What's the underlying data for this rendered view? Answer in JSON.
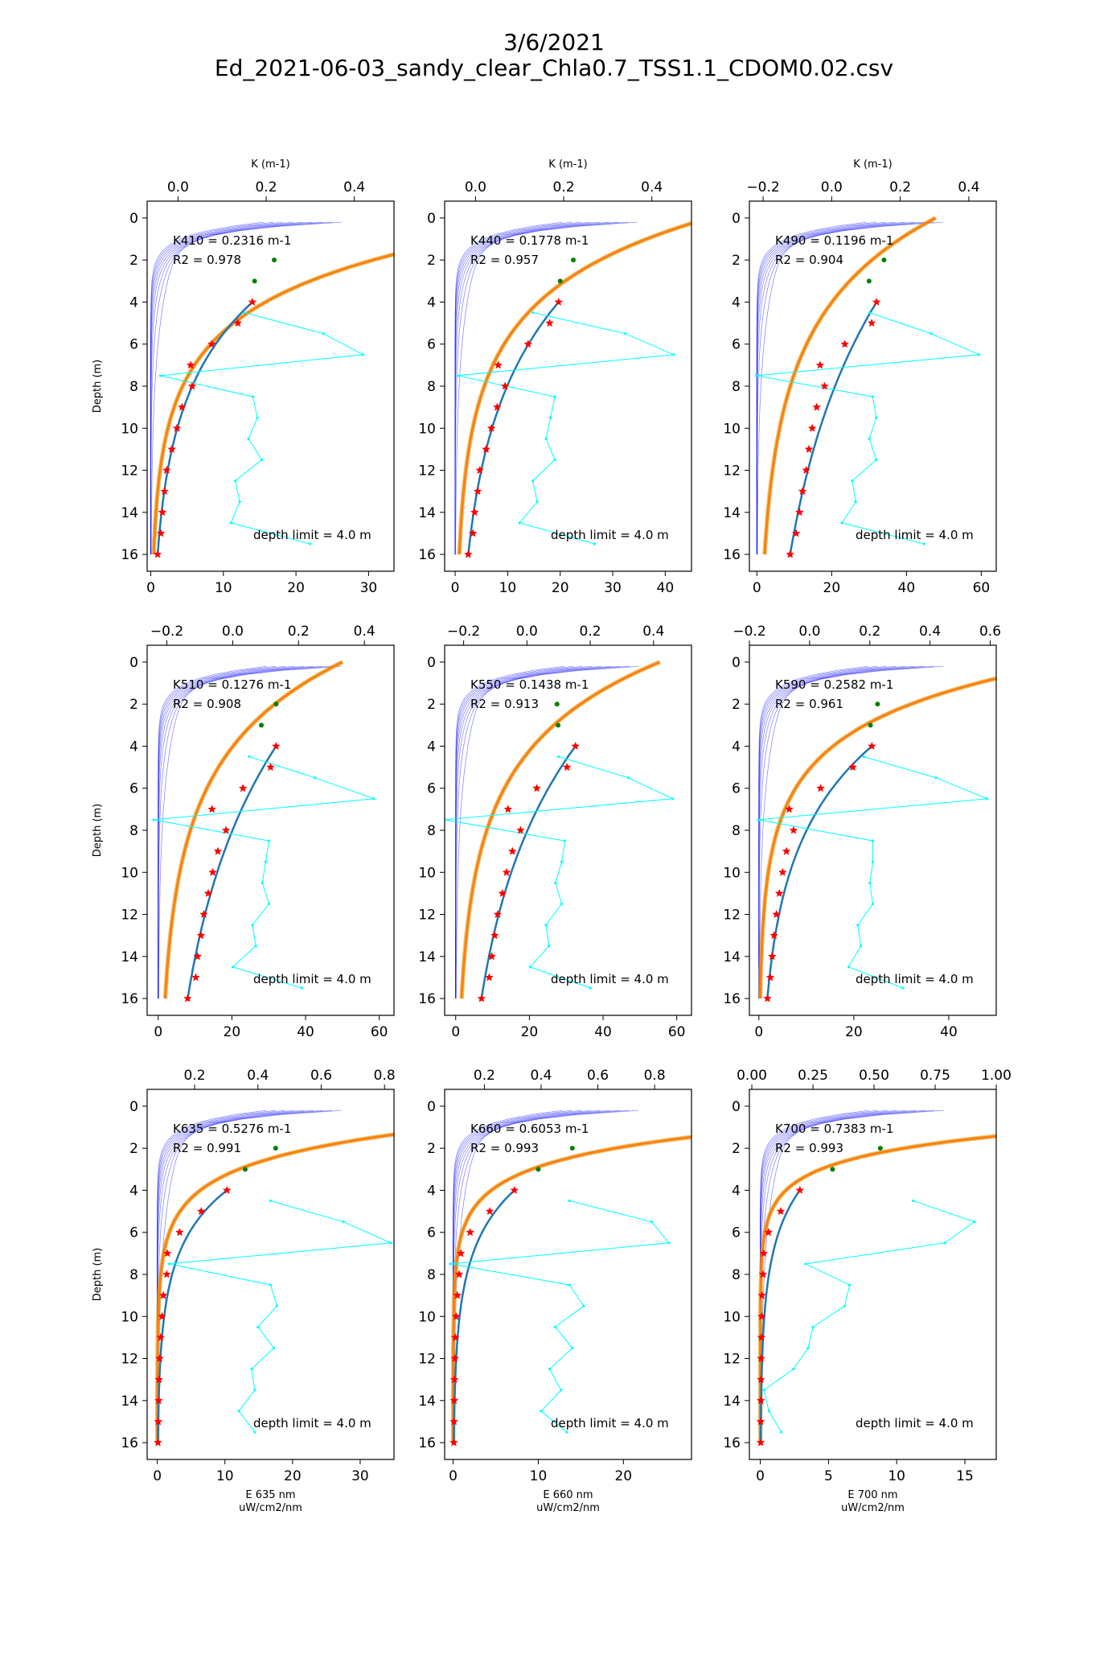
{
  "figure": {
    "title_line1": "3/6/2021",
    "title_line2": "Ed_2021-06-03_sandy_clear_Chla0.7_TSS1.1_CDOM0.02.csv",
    "colors": {
      "frame": "#000000",
      "fit": "#1f77b4",
      "model": "#ff7f0e",
      "model_edge": "#d4a017",
      "K_profile": "#00ffff",
      "thin_curves": "#0000ff",
      "stars": "#ff0000",
      "extra_points": "#008000"
    }
  },
  "chart_data": [
    {
      "type": "scatter",
      "wavelength": "410",
      "k_label": "K410 = 0.2316 m-1",
      "r2_label": "R2 = 0.978",
      "depth_limit_label": "depth limit  = 4.0 m",
      "ylabel": "Depth (m)",
      "top_xlabel": "K (m-1)",
      "xlabel": "",
      "xlabel_units": "",
      "ylim": [
        16.8,
        -0.8
      ],
      "yticks": [
        0,
        2,
        4,
        6,
        8,
        10,
        12,
        14,
        16
      ],
      "xlim": [
        -0.5,
        33.5
      ],
      "xticks": [
        0,
        10,
        20,
        30
      ],
      "k_xlim": [
        -0.07,
        0.49
      ],
      "k_xticks": [
        0.0,
        0.2,
        0.4
      ],
      "k_tick_labels": [
        "0.0",
        "0.2",
        "0.4"
      ],
      "E_max": 33.8,
      "E0": 60.18,
      "model_offset": 0.0,
      "thin_curve_count": 9,
      "measured_stars": {
        "depths": [
          4,
          5,
          6,
          7,
          8,
          9,
          10,
          11,
          12,
          13,
          14,
          15,
          16
        ],
        "values": [
          14.0,
          12.0,
          8.4,
          5.5,
          5.7,
          4.3,
          3.6,
          2.9,
          2.2,
          1.9,
          1.6,
          1.4,
          0.95
        ]
      },
      "extra_points": {
        "depths": [
          2,
          3
        ],
        "values": [
          17.0,
          14.3
        ]
      },
      "K_profile": {
        "depths": [
          4.5,
          5.5,
          6.5,
          7.5,
          8.5,
          9.5,
          10.5,
          11.5,
          12.5,
          13.5,
          14.5,
          15.5
        ],
        "values": [
          0.15,
          0.33,
          0.42,
          -0.04,
          0.17,
          0.18,
          0.16,
          0.19,
          0.13,
          0.14,
          0.12,
          0.3
        ]
      }
    },
    {
      "type": "scatter",
      "wavelength": "440",
      "k_label": "K440 = 0.1778 m-1",
      "r2_label": "R2 = 0.957",
      "depth_limit_label": "depth limit  = 4.0 m",
      "ylabel": "",
      "top_xlabel": "K (m-1)",
      "xlabel": "",
      "xlabel_units": "",
      "ylim": [
        16.8,
        -0.8
      ],
      "yticks": [
        0,
        2,
        4,
        6,
        8,
        10,
        12,
        14,
        16
      ],
      "xlim": [
        -2,
        45
      ],
      "xticks": [
        0,
        10,
        20,
        30,
        40
      ],
      "k_xlim": [
        -0.07,
        0.49
      ],
      "k_xticks": [
        0.0,
        0.2,
        0.4
      ],
      "k_tick_labels": [
        "0.0",
        "0.2",
        "0.4"
      ],
      "E_max": 44.5,
      "E0": 48.4,
      "model_offset": 0.0,
      "thin_curve_count": 9,
      "measured_stars": {
        "depths": [
          4,
          5,
          6,
          7,
          8,
          9,
          10,
          11,
          12,
          13,
          14,
          15,
          16
        ],
        "values": [
          19.7,
          18.0,
          13.9,
          8.2,
          9.5,
          8.0,
          6.9,
          5.9,
          4.7,
          4.3,
          3.7,
          3.4,
          2.5
        ]
      },
      "extra_points": {
        "depths": [
          2,
          3
        ],
        "values": [
          22.5,
          20.0
        ]
      },
      "K_profile": {
        "depths": [
          4.5,
          5.5,
          6.5,
          7.5,
          8.5,
          9.5,
          10.5,
          11.5,
          12.5,
          13.5,
          14.5,
          15.5
        ],
        "values": [
          0.13,
          0.34,
          0.45,
          -0.04,
          0.18,
          0.17,
          0.16,
          0.18,
          0.13,
          0.14,
          0.1,
          0.27
        ]
      }
    },
    {
      "type": "scatter",
      "wavelength": "490",
      "k_label": "K490 = 0.1196 m-1",
      "r2_label": "R2 = 0.904",
      "depth_limit_label": "depth limit  = 4.0 m",
      "ylabel": "",
      "top_xlabel": "K (m-1)",
      "xlabel": "",
      "xlabel_units": "",
      "ylim": [
        16.8,
        -0.8
      ],
      "yticks": [
        0,
        2,
        4,
        6,
        8,
        10,
        12,
        14,
        16
      ],
      "xlim": [
        -2,
        64
      ],
      "xticks": [
        0,
        20,
        40,
        60
      ],
      "k_xlim": [
        -0.24,
        0.48
      ],
      "k_xticks": [
        -0.2,
        0.0,
        0.2,
        0.4
      ],
      "k_tick_labels": [
        "−0.2",
        "0.0",
        "0.2",
        "0.4"
      ],
      "E_max": 64.0,
      "E0": 47.8,
      "model_offset": 0.0,
      "thin_curve_count": 9,
      "measured_stars": {
        "depths": [
          4,
          5,
          6,
          7,
          8,
          9,
          10,
          11,
          12,
          13,
          14,
          15,
          16
        ],
        "values": [
          32.0,
          30.7,
          23.5,
          16.9,
          18.1,
          16.0,
          14.8,
          13.9,
          13.2,
          12.2,
          11.4,
          10.5,
          8.9
        ]
      },
      "extra_points": {
        "depths": [
          2,
          3
        ],
        "values": [
          34.0,
          30.0
        ]
      },
      "K_profile": {
        "depths": [
          4.5,
          5.5,
          6.5,
          7.5,
          8.5,
          9.5,
          10.5,
          11.5,
          12.5,
          13.5,
          14.5,
          15.5
        ],
        "values": [
          0.11,
          0.29,
          0.43,
          -0.22,
          0.12,
          0.13,
          0.11,
          0.13,
          0.06,
          0.07,
          0.03,
          0.27
        ]
      }
    },
    {
      "type": "scatter",
      "wavelength": "510",
      "k_label": "K510 = 0.1276 m-1",
      "r2_label": "R2 = 0.908",
      "depth_limit_label": "depth limit  = 4.0 m",
      "ylabel": "Depth (m)",
      "top_xlabel": "",
      "xlabel": "",
      "xlabel_units": "",
      "ylim": [
        16.8,
        -0.8
      ],
      "yticks": [
        0,
        2,
        4,
        6,
        8,
        10,
        12,
        14,
        16
      ],
      "xlim": [
        -3,
        64
      ],
      "xticks": [
        0,
        20,
        40,
        60
      ],
      "k_xlim": [
        -0.26,
        0.49
      ],
      "k_xticks": [
        -0.2,
        0.0,
        0.2,
        0.4
      ],
      "k_tick_labels": [
        "−0.2",
        "0.0",
        "0.2",
        "0.4"
      ],
      "E_max": 64.0,
      "E0": 50.0,
      "model_offset": 0.0,
      "thin_curve_count": 9,
      "measured_stars": {
        "depths": [
          4,
          5,
          6,
          7,
          8,
          9,
          10,
          11,
          12,
          13,
          14,
          15,
          16
        ],
        "values": [
          32.0,
          30.5,
          23.0,
          14.6,
          18.4,
          16.2,
          14.8,
          13.6,
          12.4,
          11.6,
          10.7,
          10.2,
          8.0
        ]
      },
      "extra_points": {
        "depths": [
          2,
          3
        ],
        "values": [
          32.0,
          28.0
        ]
      },
      "K_profile": {
        "depths": [
          4.5,
          5.5,
          6.5,
          7.5,
          8.5,
          9.5,
          10.5,
          11.5,
          12.5,
          13.5,
          14.5,
          15.5
        ],
        "values": [
          0.05,
          0.25,
          0.43,
          -0.24,
          0.11,
          0.1,
          0.09,
          0.11,
          0.06,
          0.07,
          0.0,
          0.21
        ]
      }
    },
    {
      "type": "scatter",
      "wavelength": "550",
      "k_label": "K550 = 0.1438 m-1",
      "r2_label": "R2 = 0.913",
      "depth_limit_label": "depth limit  = 4.0 m",
      "ylabel": "",
      "top_xlabel": "",
      "xlabel": "",
      "xlabel_units": "",
      "ylim": [
        16.8,
        -0.8
      ],
      "yticks": [
        0,
        2,
        4,
        6,
        8,
        10,
        12,
        14,
        16
      ],
      "xlim": [
        -3,
        64
      ],
      "xticks": [
        0,
        20,
        40,
        60
      ],
      "k_xlim": [
        -0.26,
        0.52
      ],
      "k_xticks": [
        -0.2,
        0.0,
        0.2,
        0.4
      ],
      "k_tick_labels": [
        "−0.2",
        "0.0",
        "0.2",
        "0.4"
      ],
      "E_max": 64.0,
      "E0": 55.4,
      "model_offset": 0.0,
      "thin_curve_count": 9,
      "measured_stars": {
        "depths": [
          4,
          5,
          6,
          7,
          8,
          9,
          10,
          11,
          12,
          13,
          14,
          15,
          16
        ],
        "values": [
          32.5,
          30.2,
          22.0,
          14.2,
          17.6,
          15.4,
          13.8,
          12.7,
          11.4,
          10.6,
          9.8,
          9.1,
          7.0
        ]
      },
      "extra_points": {
        "depths": [
          2,
          3
        ],
        "values": [
          27.5,
          27.8
        ]
      },
      "K_profile": {
        "depths": [
          4.5,
          5.5,
          6.5,
          7.5,
          8.5,
          9.5,
          10.5,
          11.5,
          12.5,
          13.5,
          14.5,
          15.5
        ],
        "values": [
          0.1,
          0.32,
          0.46,
          -0.26,
          0.12,
          0.11,
          0.09,
          0.11,
          0.06,
          0.07,
          0.01,
          0.2
        ]
      }
    },
    {
      "type": "scatter",
      "wavelength": "590",
      "k_label": "K590 = 0.2582 m-1",
      "r2_label": "R2 = 0.961",
      "depth_limit_label": "depth limit  = 4.0 m",
      "ylabel": "",
      "top_xlabel": "",
      "xlabel": "",
      "xlabel_units": "",
      "ylim": [
        16.8,
        -0.8
      ],
      "yticks": [
        0,
        2,
        4,
        6,
        8,
        10,
        12,
        14,
        16
      ],
      "xlim": [
        -2,
        50
      ],
      "xticks": [
        0,
        20,
        40
      ],
      "k_xlim": [
        -0.2,
        0.62
      ],
      "k_xticks": [
        -0.2,
        0.0,
        0.2,
        0.4,
        0.6
      ],
      "k_tick_labels": [
        "−0.2",
        "0.0",
        "0.2",
        "0.4",
        "0.6"
      ],
      "E_max": 50.0,
      "E0": 66.6,
      "model_offset": 0.0,
      "thin_curve_count": 9,
      "measured_stars": {
        "depths": [
          4,
          5,
          6,
          7,
          8,
          9,
          10,
          11,
          12,
          13,
          14,
          15,
          16
        ],
        "values": [
          23.8,
          19.8,
          13.0,
          6.4,
          7.3,
          5.8,
          5.0,
          4.3,
          3.7,
          3.2,
          2.8,
          2.4,
          1.8
        ]
      },
      "extra_points": {
        "depths": [
          2,
          3
        ],
        "values": [
          25.0,
          23.5
        ]
      },
      "K_profile": {
        "depths": [
          4.5,
          5.5,
          6.5,
          7.5,
          8.5,
          9.5,
          10.5,
          11.5,
          12.5,
          13.5,
          14.5,
          15.5
        ],
        "values": [
          0.18,
          0.42,
          0.59,
          -0.17,
          0.21,
          0.21,
          0.2,
          0.21,
          0.16,
          0.17,
          0.13,
          0.31
        ]
      }
    },
    {
      "type": "scatter",
      "wavelength": "635",
      "k_label": "K635 = 0.5276 m-1",
      "r2_label": "R2 = 0.991",
      "depth_limit_label": "depth limit  = 4.0 m",
      "ylabel": "Depth (m)",
      "top_xlabel": "",
      "xlabel": "E 635 nm",
      "xlabel_units": "uW/cm2/nm",
      "ylim": [
        16.8,
        -0.8
      ],
      "yticks": [
        0,
        2,
        4,
        6,
        8,
        10,
        12,
        14,
        16
      ],
      "xlim": [
        -1.5,
        35
      ],
      "xticks": [
        0,
        10,
        20,
        30
      ],
      "k_xlim": [
        0.05,
        0.83
      ],
      "k_xticks": [
        0.2,
        0.4,
        0.6,
        0.8
      ],
      "k_tick_labels": [
        "0.2",
        "0.4",
        "0.6",
        "0.8"
      ],
      "E_max": 35.0,
      "E0": 84.0,
      "model_offset": 0.0,
      "thin_curve_count": 9,
      "measured_stars": {
        "depths": [
          4,
          5,
          6,
          7,
          8,
          9,
          10,
          11,
          12,
          13,
          14,
          15,
          16
        ],
        "values": [
          10.3,
          6.5,
          3.3,
          1.5,
          1.4,
          0.9,
          0.7,
          0.5,
          0.35,
          0.25,
          0.2,
          0.15,
          0.1
        ]
      },
      "extra_points": {
        "depths": [
          2,
          3
        ],
        "values": [
          17.5,
          13.0
        ]
      },
      "K_profile": {
        "depths": [
          4.5,
          5.5,
          6.5,
          7.5,
          8.5,
          9.5,
          10.5,
          11.5,
          12.5,
          13.5,
          14.5,
          15.5
        ],
        "values": [
          0.44,
          0.67,
          0.82,
          0.12,
          0.44,
          0.46,
          0.4,
          0.45,
          0.38,
          0.39,
          0.34,
          0.39
        ]
      }
    },
    {
      "type": "scatter",
      "wavelength": "660",
      "k_label": "K660 = 0.6053 m-1",
      "r2_label": "R2 = 0.993",
      "depth_limit_label": "depth limit  = 4.0 m",
      "ylabel": "",
      "top_xlabel": "",
      "xlabel": "E 660 nm",
      "xlabel_units": "uW/cm2/nm",
      "ylim": [
        16.8,
        -0.8
      ],
      "yticks": [
        0,
        2,
        4,
        6,
        8,
        10,
        12,
        14,
        16
      ],
      "xlim": [
        -1,
        28
      ],
      "xticks": [
        0,
        10,
        20
      ],
      "k_xlim": [
        0.06,
        0.93
      ],
      "k_xticks": [
        0.2,
        0.4,
        0.6,
        0.8
      ],
      "k_tick_labels": [
        "0.2",
        "0.4",
        "0.6",
        "0.8"
      ],
      "E_max": 28.0,
      "E0": 82.0,
      "model_offset": 0.0,
      "thin_curve_count": 9,
      "measured_stars": {
        "depths": [
          4,
          5,
          6,
          7,
          8,
          9,
          10,
          11,
          12,
          13,
          14,
          15,
          16
        ],
        "values": [
          7.2,
          4.3,
          2.0,
          0.9,
          0.7,
          0.5,
          0.35,
          0.25,
          0.2,
          0.15,
          0.12,
          0.1,
          0.08
        ]
      },
      "extra_points": {
        "depths": [
          2,
          3
        ],
        "values": [
          14.0,
          10.0
        ]
      },
      "K_profile": {
        "depths": [
          4.5,
          5.5,
          6.5,
          7.5,
          8.5,
          9.5,
          10.5,
          11.5,
          12.5,
          13.5,
          14.5,
          15.5
        ],
        "values": [
          0.5,
          0.79,
          0.85,
          0.08,
          0.5,
          0.55,
          0.45,
          0.51,
          0.43,
          0.47,
          0.4,
          0.49
        ]
      }
    },
    {
      "type": "scatter",
      "wavelength": "700",
      "k_label": "K700 = 0.7383 m-1",
      "r2_label": "R2 = 0.993",
      "depth_limit_label": "depth limit  = 4.0 m",
      "ylabel": "",
      "top_xlabel": "",
      "xlabel": "E 700 nm",
      "xlabel_units": "uW/cm2/nm",
      "ylim": [
        16.8,
        -0.8
      ],
      "yticks": [
        0,
        2,
        4,
        6,
        8,
        10,
        12,
        14,
        16
      ],
      "xlim": [
        -0.8,
        17.3
      ],
      "xticks": [
        0,
        5,
        10,
        15
      ],
      "k_xlim": [
        -0.01,
        1.0
      ],
      "k_xticks": [
        0.0,
        0.25,
        0.5,
        0.75,
        1.0
      ],
      "k_tick_labels": [
        "0.00",
        "0.25",
        "0.50",
        "0.75",
        "1.00"
      ],
      "E_max": 17.3,
      "E0": 60.0,
      "model_offset": 0.0,
      "thin_curve_count": 9,
      "measured_stars": {
        "depths": [
          4,
          5,
          6,
          7,
          8,
          9,
          10,
          11,
          12,
          13,
          14,
          15,
          16
        ],
        "values": [
          2.9,
          1.5,
          0.6,
          0.25,
          0.2,
          0.12,
          0.1,
          0.08,
          0.06,
          0.05,
          0.04,
          0.03,
          0.03
        ]
      },
      "extra_points": {
        "depths": [
          2,
          3
        ],
        "values": [
          8.8,
          5.3
        ]
      },
      "K_profile": {
        "depths": [
          4.5,
          5.5,
          6.5,
          7.5,
          8.5,
          9.5,
          10.5,
          11.5,
          12.5,
          13.5,
          14.5,
          15.5
        ],
        "values": [
          0.66,
          0.91,
          0.79,
          0.22,
          0.4,
          0.38,
          0.25,
          0.23,
          0.17,
          0.05,
          0.07,
          0.12
        ]
      }
    }
  ]
}
